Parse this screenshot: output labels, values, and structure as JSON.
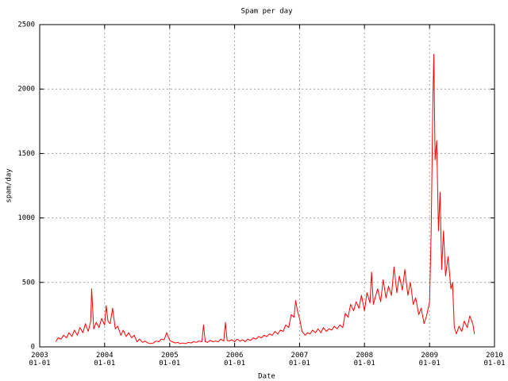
{
  "chart_data": {
    "type": "line",
    "title": "Spam per day",
    "x_label": "Date",
    "y_label": "spam/day",
    "color": "#ff0000",
    "grid": true,
    "xlim": [
      "2003-01-01",
      "2010-01-01"
    ],
    "xticks": [
      {
        "value": "2003-01-01",
        "label": "2003\n01-01"
      },
      {
        "value": "2004-01-01",
        "label": "2004\n01-01"
      },
      {
        "value": "2005-01-01",
        "label": "2005\n01-01"
      },
      {
        "value": "2006-01-01",
        "label": "2006\n01-01"
      },
      {
        "value": "2007-01-01",
        "label": "2007\n01-01"
      },
      {
        "value": "2008-01-01",
        "label": "2008\n01-01"
      },
      {
        "value": "2009-01-01",
        "label": "2009\n01-01"
      },
      {
        "value": "2010-01-01",
        "label": "2010\n01-01"
      }
    ],
    "ylim": [
      0,
      2500
    ],
    "yticks": [
      0,
      500,
      1000,
      1500,
      2000,
      2500
    ],
    "x": [
      "2003-04-01",
      "2003-04-15",
      "2003-05-01",
      "2003-05-15",
      "2003-06-01",
      "2003-06-15",
      "2003-07-01",
      "2003-07-15",
      "2003-08-01",
      "2003-08-15",
      "2003-09-01",
      "2003-09-15",
      "2003-10-01",
      "2003-10-15",
      "2003-10-20",
      "2003-11-01",
      "2003-11-15",
      "2003-12-01",
      "2003-12-15",
      "2004-01-01",
      "2004-01-10",
      "2004-01-20",
      "2004-02-01",
      "2004-02-15",
      "2004-03-01",
      "2004-03-15",
      "2004-04-01",
      "2004-04-15",
      "2004-05-01",
      "2004-05-15",
      "2004-06-01",
      "2004-06-15",
      "2004-07-01",
      "2004-07-15",
      "2004-08-01",
      "2004-08-15",
      "2004-09-01",
      "2004-09-15",
      "2004-10-01",
      "2004-10-15",
      "2004-11-01",
      "2004-11-15",
      "2004-12-01",
      "2004-12-15",
      "2005-01-01",
      "2005-01-15",
      "2005-02-01",
      "2005-02-15",
      "2005-03-01",
      "2005-03-15",
      "2005-04-01",
      "2005-04-15",
      "2005-05-01",
      "2005-05-15",
      "2005-06-01",
      "2005-06-15",
      "2005-07-01",
      "2005-07-10",
      "2005-07-20",
      "2005-08-01",
      "2005-08-15",
      "2005-09-01",
      "2005-09-15",
      "2005-10-01",
      "2005-10-15",
      "2005-11-01",
      "2005-11-10",
      "2005-11-20",
      "2005-12-01",
      "2005-12-15",
      "2006-01-01",
      "2006-01-15",
      "2006-02-01",
      "2006-02-15",
      "2006-03-01",
      "2006-03-15",
      "2006-04-01",
      "2006-04-15",
      "2006-05-01",
      "2006-05-15",
      "2006-06-01",
      "2006-06-15",
      "2006-07-01",
      "2006-07-15",
      "2006-08-01",
      "2006-08-15",
      "2006-09-01",
      "2006-09-15",
      "2006-10-01",
      "2006-10-15",
      "2006-11-01",
      "2006-11-15",
      "2006-12-01",
      "2006-12-10",
      "2006-12-20",
      "2007-01-01",
      "2007-01-15",
      "2007-02-01",
      "2007-02-15",
      "2007-03-01",
      "2007-03-15",
      "2007-04-01",
      "2007-04-15",
      "2007-05-01",
      "2007-05-15",
      "2007-06-01",
      "2007-06-15",
      "2007-07-01",
      "2007-07-15",
      "2007-08-01",
      "2007-08-15",
      "2007-09-01",
      "2007-09-15",
      "2007-10-01",
      "2007-10-15",
      "2007-11-01",
      "2007-11-15",
      "2007-12-01",
      "2007-12-15",
      "2008-01-01",
      "2008-01-15",
      "2008-02-01",
      "2008-02-10",
      "2008-02-20",
      "2008-03-01",
      "2008-03-15",
      "2008-04-01",
      "2008-04-15",
      "2008-05-01",
      "2008-05-15",
      "2008-06-01",
      "2008-06-15",
      "2008-07-01",
      "2008-07-15",
      "2008-08-01",
      "2008-08-15",
      "2008-09-01",
      "2008-09-15",
      "2008-10-01",
      "2008-10-15",
      "2008-11-01",
      "2008-11-15",
      "2008-12-01",
      "2008-12-15",
      "2009-01-01",
      "2009-01-10",
      "2009-01-20",
      "2009-01-25",
      "2009-02-01",
      "2009-02-10",
      "2009-02-20",
      "2009-03-01",
      "2009-03-10",
      "2009-03-20",
      "2009-04-01",
      "2009-04-15",
      "2009-05-01",
      "2009-05-10",
      "2009-05-20",
      "2009-06-01",
      "2009-06-15",
      "2009-07-01",
      "2009-07-15",
      "2009-08-01",
      "2009-08-15",
      "2009-09-01",
      "2009-09-10"
    ],
    "values": [
      40,
      70,
      60,
      90,
      70,
      110,
      80,
      130,
      90,
      150,
      110,
      180,
      120,
      200,
      450,
      140,
      190,
      150,
      220,
      170,
      320,
      200,
      180,
      300,
      140,
      160,
      90,
      130,
      80,
      110,
      70,
      90,
      40,
      60,
      35,
      45,
      30,
      25,
      30,
      45,
      40,
      60,
      55,
      110,
      50,
      40,
      30,
      35,
      25,
      30,
      25,
      35,
      30,
      40,
      35,
      45,
      40,
      170,
      40,
      35,
      50,
      40,
      45,
      40,
      60,
      45,
      190,
      50,
      45,
      55,
      40,
      60,
      45,
      55,
      40,
      60,
      50,
      70,
      60,
      80,
      70,
      90,
      80,
      100,
      90,
      120,
      100,
      130,
      120,
      170,
      150,
      250,
      230,
      360,
      280,
      220,
      120,
      90,
      110,
      100,
      130,
      110,
      140,
      110,
      150,
      120,
      140,
      130,
      160,
      140,
      170,
      150,
      260,
      230,
      330,
      280,
      350,
      300,
      400,
      280,
      420,
      340,
      580,
      330,
      380,
      450,
      350,
      520,
      380,
      470,
      400,
      620,
      420,
      550,
      440,
      600,
      400,
      500,
      330,
      380,
      250,
      300,
      180,
      240,
      350,
      900,
      1950,
      2270,
      1450,
      1600,
      900,
      1200,
      600,
      900,
      550,
      700,
      450,
      500,
      150,
      100,
      160,
      120,
      200,
      150,
      240,
      180,
      100
    ]
  }
}
